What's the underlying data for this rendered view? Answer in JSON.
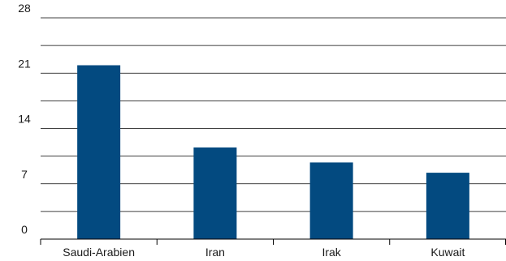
{
  "chart_data": {
    "type": "bar",
    "title": "",
    "xlabel": "",
    "ylabel": "",
    "categories": [
      "Saudi-Arabien",
      "Iran",
      "Irak",
      "Kuwait"
    ],
    "values": [
      22.0,
      11.6,
      9.7,
      8.4
    ],
    "ylim": [
      0,
      28
    ],
    "y_ticks": [
      0,
      7,
      14,
      21,
      28
    ],
    "y_tick_labels": [
      "0",
      "7",
      "14",
      "21",
      "28"
    ],
    "gridlines": [
      3.5,
      7,
      10.5,
      14,
      17.5,
      21,
      24.5,
      28
    ],
    "grid": true,
    "legend": "none",
    "colors": {
      "bar": "#034a80",
      "grid": "#000000",
      "text": "#1a1a1a"
    }
  }
}
